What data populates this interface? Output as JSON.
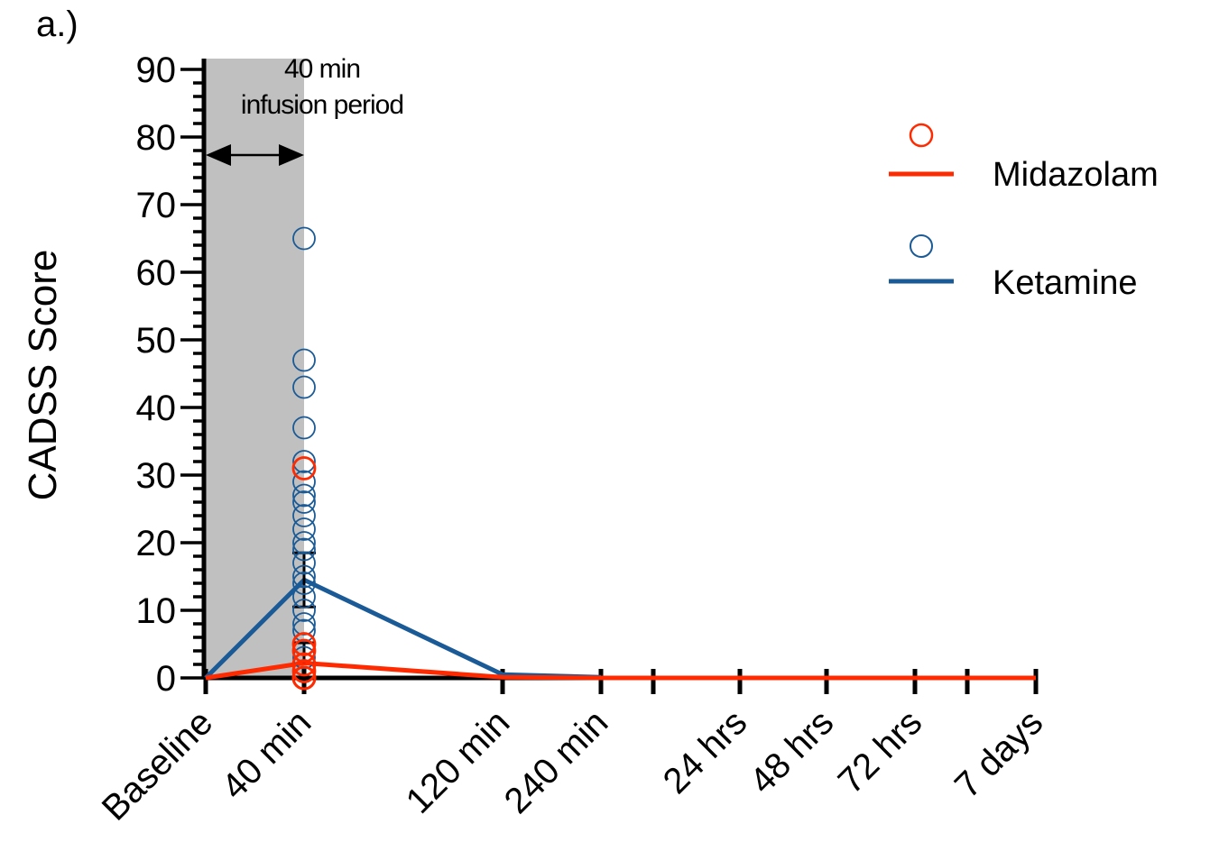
{
  "panel_label": "a.)",
  "chart_data": {
    "type": "line",
    "title": "",
    "xlabel": "",
    "ylabel": "CADSS Score",
    "ylim": [
      0,
      90
    ],
    "ytick_step": 10,
    "grid": false,
    "legend_position": "top-right",
    "categories": [
      "Baseline",
      "40 min",
      "120 min",
      "240 min",
      "24 hrs",
      "48 hrs",
      "72 hrs",
      "7 days"
    ],
    "shaded_region": {
      "label_line1": "40 min",
      "label_line2": "infusion period",
      "from": "Baseline",
      "to": "40 min",
      "color": "#c0c0c0"
    },
    "series": [
      {
        "name": "Midazolam",
        "color": "#ff2a00",
        "means": [
          0,
          2.2,
          0.1,
          0,
          0,
          0,
          0,
          0
        ],
        "error_upper": [
          0,
          5.2,
          null,
          null,
          null,
          null,
          null,
          null
        ],
        "individual_points": {
          "category": "40 min",
          "values": [
            31,
            5,
            4,
            2,
            1,
            0,
            0,
            0,
            0
          ]
        }
      },
      {
        "name": "Ketamine",
        "color": "#1a5a96",
        "means": [
          0,
          14.5,
          0.5,
          0.1,
          null,
          null,
          null,
          null
        ],
        "error_upper": [
          0,
          18.5,
          null,
          null,
          null,
          null,
          null,
          null
        ],
        "error_lower": [
          0,
          10.5,
          null,
          null,
          null,
          null,
          null,
          null
        ],
        "individual_points": {
          "category": "40 min",
          "values": [
            65,
            47,
            43,
            37,
            32,
            29,
            27,
            26,
            24,
            22,
            20,
            19,
            17,
            15,
            14,
            12,
            10,
            8,
            7,
            5,
            3,
            2,
            1
          ]
        }
      }
    ]
  }
}
